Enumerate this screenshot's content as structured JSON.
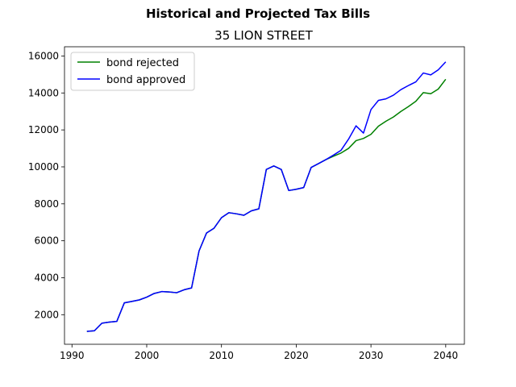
{
  "chart_data": {
    "type": "line",
    "suptitle": "Historical and Projected Tax Bills",
    "title": "35 LION STREET",
    "xlabel": "",
    "ylabel": "",
    "xlim": [
      1989,
      2042.5
    ],
    "ylim": [
      400,
      16500
    ],
    "xticks": [
      1990,
      2000,
      2010,
      2020,
      2030,
      2040
    ],
    "yticks": [
      2000,
      4000,
      6000,
      8000,
      10000,
      12000,
      14000,
      16000
    ],
    "grid": false,
    "legend_position": "top-left",
    "series": [
      {
        "name": "bond rejected",
        "color": "#008000",
        "x": [
          1992,
          1993,
          1994,
          1995,
          1996,
          1997,
          1998,
          1999,
          2000,
          2001,
          2002,
          2003,
          2004,
          2005,
          2006,
          2007,
          2008,
          2009,
          2010,
          2011,
          2012,
          2013,
          2014,
          2015,
          2016,
          2017,
          2018,
          2019,
          2020,
          2021,
          2022,
          2023,
          2024,
          2025,
          2026,
          2027,
          2028,
          2029,
          2030,
          2031,
          2032,
          2033,
          2034,
          2035,
          2036,
          2037,
          2038,
          2039,
          2040
        ],
        "values": [
          1100,
          1130,
          1540,
          1600,
          1640,
          2640,
          2720,
          2800,
          2950,
          3150,
          3250,
          3230,
          3190,
          3350,
          3450,
          5450,
          6420,
          6680,
          7250,
          7520,
          7460,
          7380,
          7620,
          7730,
          9860,
          10050,
          9860,
          8720,
          8790,
          8880,
          9970,
          10180,
          10400,
          10580,
          10750,
          11000,
          11420,
          11540,
          11760,
          12200,
          12470,
          12700,
          13000,
          13260,
          13550,
          14020,
          13960,
          14210,
          14740
        ]
      },
      {
        "name": "bond approved",
        "color": "#0000ff",
        "x": [
          1992,
          1993,
          1994,
          1995,
          1996,
          1997,
          1998,
          1999,
          2000,
          2001,
          2002,
          2003,
          2004,
          2005,
          2006,
          2007,
          2008,
          2009,
          2010,
          2011,
          2012,
          2013,
          2014,
          2015,
          2016,
          2017,
          2018,
          2019,
          2020,
          2021,
          2022,
          2023,
          2024,
          2025,
          2026,
          2027,
          2028,
          2029,
          2030,
          2031,
          2032,
          2033,
          2034,
          2035,
          2036,
          2037,
          2038,
          2039,
          2040
        ],
        "values": [
          1100,
          1130,
          1540,
          1600,
          1640,
          2640,
          2720,
          2800,
          2950,
          3150,
          3250,
          3230,
          3190,
          3350,
          3450,
          5450,
          6420,
          6680,
          7250,
          7520,
          7460,
          7380,
          7620,
          7730,
          9860,
          10050,
          9860,
          8720,
          8790,
          8880,
          9970,
          10180,
          10400,
          10640,
          10900,
          11500,
          12220,
          11830,
          13100,
          13600,
          13680,
          13880,
          14180,
          14400,
          14600,
          15080,
          14980,
          15250,
          15680
        ]
      }
    ]
  }
}
